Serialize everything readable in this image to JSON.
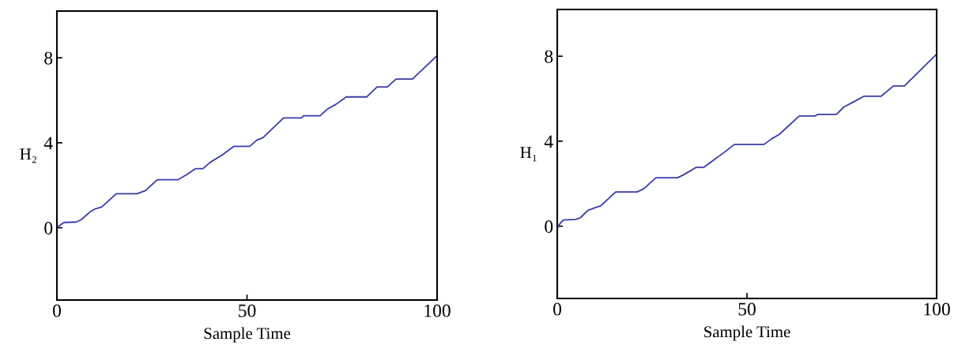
{
  "chart_data": [
    {
      "type": "line",
      "xlabel": "Sample Time",
      "ylabel": "H₂",
      "xlim": [
        0,
        100
      ],
      "ylim": [
        -3.4,
        10.2
      ],
      "xticks": [
        0,
        50,
        100
      ],
      "yticks": [
        0,
        4,
        8
      ],
      "grid": false,
      "series": [
        {
          "color": "#3b3bab",
          "x": [
            0,
            1.4,
            1.9,
            5,
            6.4,
            8.7,
            10.2,
            11.8,
            15.6,
            21,
            23.3,
            26.4,
            31.8,
            34.1,
            36.4,
            38.4,
            40.3,
            43.4,
            46.5,
            50.7,
            52.6,
            54.2,
            59.6,
            64.2,
            64.9,
            69.2,
            71.1,
            73.4,
            76.1,
            81.5,
            84.2,
            86.9,
            89.2,
            93.5,
            100
          ],
          "values": [
            0,
            0.2,
            0.25,
            0.27,
            0.38,
            0.75,
            0.9,
            0.98,
            1.6,
            1.6,
            1.75,
            2.26,
            2.26,
            2.5,
            2.78,
            2.78,
            3.08,
            3.42,
            3.83,
            3.83,
            4.13,
            4.24,
            5.17,
            5.17,
            5.27,
            5.27,
            5.58,
            5.81,
            6.16,
            6.16,
            6.63,
            6.63,
            7.0,
            7.0,
            8.1
          ]
        }
      ]
    },
    {
      "type": "line",
      "xlabel": "Sample Time",
      "ylabel": "H₁",
      "xlim": [
        0,
        100
      ],
      "ylim": [
        -3.4,
        10.2
      ],
      "xticks": [
        0,
        50,
        100
      ],
      "yticks": [
        0,
        4,
        8
      ],
      "grid": false,
      "series": [
        {
          "color": "#3b3bab",
          "x": [
            0,
            0.8,
            1.6,
            4.9,
            6.1,
            8.1,
            10.2,
            11.4,
            15.4,
            21,
            22.8,
            26,
            31.7,
            33.3,
            36.6,
            38.6,
            40.7,
            43.9,
            46.7,
            54.5,
            56.5,
            58.5,
            63.8,
            67.9,
            68.7,
            73.6,
            75.6,
            78,
            80.9,
            85.4,
            88.6,
            91.5,
            100
          ],
          "values": [
            -0.07,
            0.14,
            0.29,
            0.32,
            0.4,
            0.75,
            0.89,
            0.95,
            1.61,
            1.61,
            1.76,
            2.28,
            2.28,
            2.42,
            2.77,
            2.77,
            3.05,
            3.46,
            3.85,
            3.85,
            4.11,
            4.32,
            5.19,
            5.19,
            5.26,
            5.26,
            5.62,
            5.84,
            6.12,
            6.12,
            6.6,
            6.6,
            8.1
          ]
        }
      ]
    }
  ]
}
